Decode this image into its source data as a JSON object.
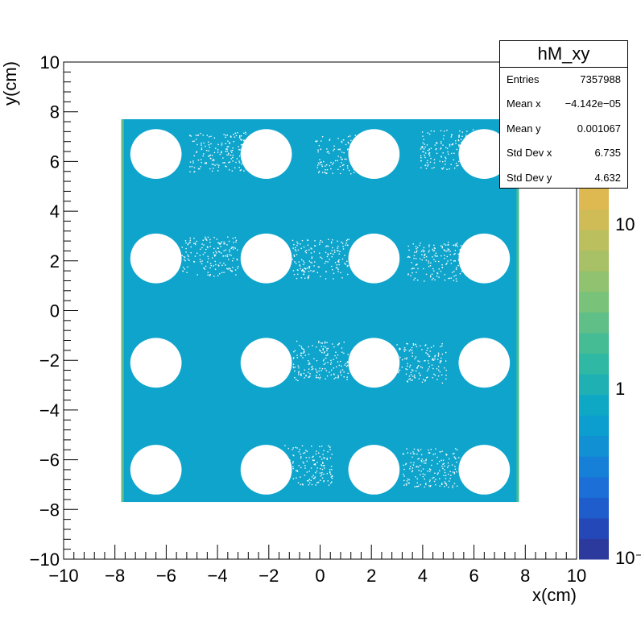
{
  "chart_data": {
    "type": "heatmap",
    "title": "hM_xy",
    "xlabel": "x(cm)",
    "ylabel": "y(cm)",
    "xlim": [
      -10,
      10
    ],
    "ylim": [
      -10,
      10
    ],
    "x_ticks": [
      "−10",
      "−8",
      "−6",
      "−4",
      "−2",
      "0",
      "2",
      "4",
      "6",
      "8",
      "10"
    ],
    "y_ticks": [
      "10",
      "8",
      "6",
      "4",
      "2",
      "0",
      "−2",
      "−4",
      "−6",
      "−8",
      "−10"
    ],
    "filled_region": {
      "x": [
        -7.75,
        7.75
      ],
      "y": [
        -7.7,
        7.7
      ]
    },
    "holes": {
      "x_centers": [
        -6.4,
        -2.1,
        2.1,
        6.4
      ],
      "y_centers": [
        6.3,
        2.1,
        -2.1,
        -6.4
      ],
      "radius": 1.0
    },
    "dominant_color": "#0ea4cc",
    "colorbar": {
      "scale": "log",
      "labels": [
        "10",
        "1",
        "10⁻"
      ],
      "colors": [
        "#2b3a9c",
        "#2448b8",
        "#1f5ccc",
        "#1b6fd6",
        "#1680d8",
        "#1190d4",
        "#0c9ecf",
        "#0fa8c4",
        "#1fb0b4",
        "#2fb8a4",
        "#45bc94",
        "#5fbf86",
        "#78c27a",
        "#90c270",
        "#a8c066",
        "#bcbf5e",
        "#d0bc56",
        "#deb850"
      ]
    },
    "stats": {
      "title": "hM_xy",
      "rows": [
        {
          "key": "Entries",
          "value": "7357988"
        },
        {
          "key": "Mean x",
          "value": "−4.142e−05"
        },
        {
          "key": "Mean y",
          "value": "0.001067"
        },
        {
          "key": "Std Dev x",
          "value": "6.735"
        },
        {
          "key": "Std Dev y",
          "value": "4.632"
        }
      ]
    }
  }
}
